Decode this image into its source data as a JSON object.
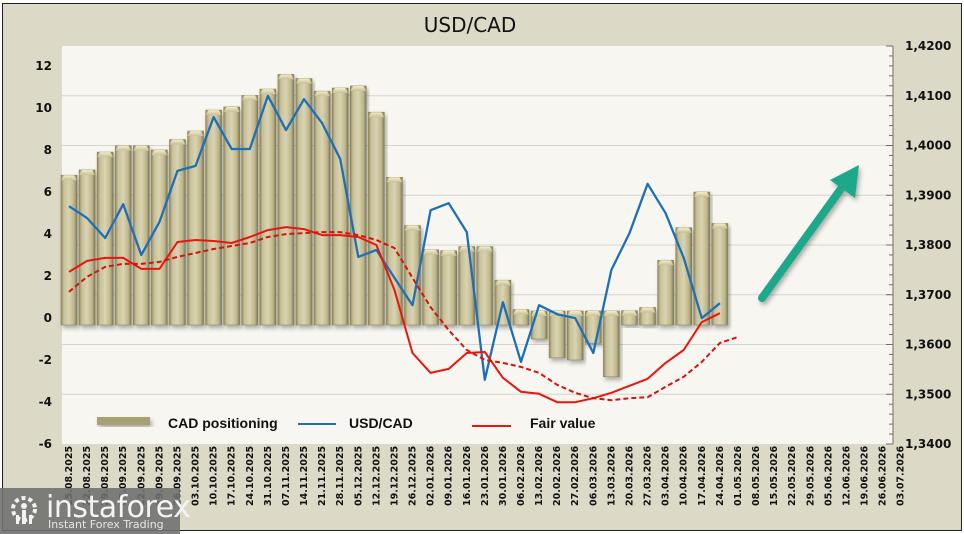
{
  "chart_data": {
    "type": "bar",
    "title": "USD/CAD",
    "categories": [
      "15.08.2025",
      "22.08.2025",
      "29.08.2025",
      "05.09.2025",
      "12.09.2025",
      "19.09.2025",
      "26.09.2025",
      "03.10.2025",
      "10.10.2025",
      "17.10.2025",
      "24.10.2025",
      "31.10.2025",
      "07.11.2025",
      "14.11.2025",
      "21.11.2025",
      "28.11.2025",
      "05.12.2025",
      "12.12.2025",
      "19.12.2025",
      "26.12.2025",
      "02.01.2026",
      "09.01.2026",
      "16.01.2026",
      "23.01.2026",
      "30.01.2026",
      "06.02.2026",
      "13.02.2026",
      "20.02.2026",
      "27.02.2026",
      "06.03.2026",
      "13.03.2026",
      "20.03.2026",
      "27.03.2026",
      "03.04.2026",
      "10.04.2026",
      "17.04.2026",
      "24.04.2026",
      "01.05.2026",
      "08.05.2026",
      "15.05.2026",
      "22.05.2026",
      "29.05.2026",
      "05.06.2026",
      "12.06.2026",
      "19.06.2026",
      "26.06.2026",
      "03.07.2026"
    ],
    "left_axis": {
      "ylim": [
        -6,
        12
      ],
      "ticks": [
        "12",
        "10",
        "8",
        "6",
        "4",
        "2",
        "0",
        "-2",
        "-4",
        "-6"
      ],
      "tick_values": [
        12,
        10,
        8,
        6,
        4,
        2,
        0,
        -2,
        -4,
        -6
      ]
    },
    "right_axis": {
      "ylim": [
        1.34,
        1.42
      ],
      "ticks": [
        "1,4200",
        "1,4100",
        "1,4000",
        "1,3900",
        "1,3800",
        "1,3700",
        "1,3600",
        "1,3500",
        "1,3400"
      ],
      "tick_values": [
        1.42,
        1.41,
        1.4,
        1.39,
        1.38,
        1.37,
        1.36,
        1.35,
        1.34
      ]
    },
    "grid": true,
    "legend_position": "bottom",
    "series": [
      {
        "name": "CAD positioning",
        "type": "bar",
        "axis": "left",
        "color": "#c9c29a",
        "values": [
          6.8,
          7.05,
          7.9,
          8.2,
          8.2,
          8.0,
          8.5,
          8.9,
          9.9,
          10.05,
          10.6,
          10.9,
          11.6,
          11.4,
          10.8,
          10.95,
          11.05,
          9.8,
          6.7,
          4.4,
          3.25,
          3.2,
          3.4,
          3.4,
          1.8,
          0.4,
          -1.0,
          -1.9,
          -2.0,
          -1.2,
          -2.8,
          0.35,
          0.5,
          2.75,
          4.3,
          6.0,
          4.5
        ]
      },
      {
        "name": "USD/CAD",
        "type": "line",
        "axis": "right",
        "color": "#1f6fb5",
        "values": [
          1.3878,
          1.3854,
          1.3814,
          1.3882,
          1.378,
          1.3846,
          1.3949,
          1.3959,
          1.4057,
          1.3993,
          1.3993,
          1.41,
          1.4031,
          1.4093,
          1.4045,
          1.3973,
          1.3776,
          1.379,
          1.3734,
          1.3679,
          1.387,
          1.3884,
          1.3826,
          1.3529,
          1.3685,
          1.3565,
          1.3679,
          1.3661,
          1.3653,
          1.3583,
          1.375,
          1.3824,
          1.3923,
          1.3864,
          1.3774,
          1.3653,
          1.3683
        ]
      },
      {
        "name": "Fair value",
        "type": "line",
        "axis": "right",
        "color": "#e8160c",
        "values": [
          1.3746,
          1.3768,
          1.3774,
          1.3774,
          1.3752,
          1.3752,
          1.3806,
          1.381,
          1.3808,
          1.3804,
          1.3816,
          1.383,
          1.3836,
          1.3832,
          1.382,
          1.382,
          1.3816,
          1.38,
          1.371,
          1.3583,
          1.3543,
          1.3551,
          1.3583,
          1.3585,
          1.3533,
          1.3505,
          1.3501,
          1.3484,
          1.3484,
          1.3492,
          1.3503,
          1.3517,
          1.3531,
          1.3563,
          1.3589,
          1.3645,
          1.3663
        ]
      },
      {
        "name": "Fair value (smoothed)",
        "type": "line",
        "style": "dashed",
        "axis": "right",
        "color": "#d4140c",
        "legend": false,
        "values": [
          1.3706,
          1.3736,
          1.3756,
          1.3762,
          1.3762,
          1.3766,
          1.3776,
          1.3784,
          1.3792,
          1.3798,
          1.3804,
          1.3816,
          1.3822,
          1.3824,
          1.3826,
          1.3826,
          1.382,
          1.381,
          1.3794,
          1.3734,
          1.3675,
          1.3629,
          1.3589,
          1.3569,
          1.3563,
          1.3555,
          1.3543,
          1.3519,
          1.3503,
          1.3492,
          1.3488,
          1.3492,
          1.3494,
          1.3515,
          1.3535,
          1.3565,
          1.3603,
          1.3615
        ]
      }
    ],
    "annotations": [
      {
        "type": "arrow",
        "direction": "up-right",
        "color": "#1aa88a",
        "meaning": "expected USD/CAD rise"
      }
    ],
    "legend": [
      "CAD positioning",
      "USD/CAD",
      "Fair value"
    ]
  },
  "watermark": {
    "brand": "instaforex",
    "tagline": "Instant Forex Trading"
  }
}
